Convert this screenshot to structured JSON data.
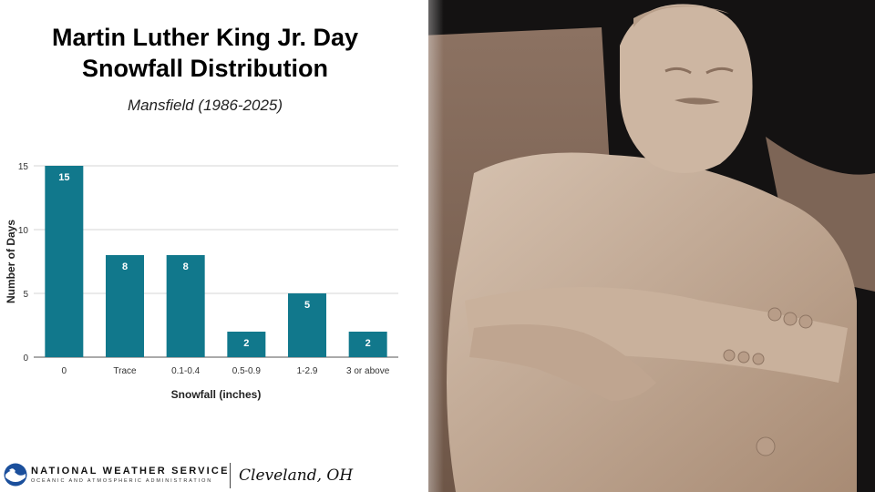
{
  "title_line1": "Martin Luther King Jr. Day",
  "title_line2": "Snowfall Distribution",
  "subtitle": "Mansfield (1986-2025)",
  "chart_data": {
    "type": "bar",
    "categories": [
      "0",
      "Trace",
      "0.1-0.4",
      "0.5-0.9",
      "1-2.9",
      "3 or above"
    ],
    "values": [
      15,
      8,
      8,
      2,
      5,
      2
    ],
    "xlabel": "Snowfall (inches)",
    "ylabel": "Number of Days",
    "ylim": [
      0,
      15
    ],
    "yticks": [
      0,
      5,
      10,
      15
    ],
    "grid": true,
    "bar_color": "#11788c",
    "data_labels": true
  },
  "footer": {
    "org_name": "NATIONAL WEATHER SERVICE",
    "org_sub": "OCEANIC AND ATMOSPHERIC ADMINISTRATION",
    "office": "Cleveland, OH"
  },
  "photo_icon": "mlk-memorial-statue-photo",
  "logo_icon": "noaa-logo-icon"
}
